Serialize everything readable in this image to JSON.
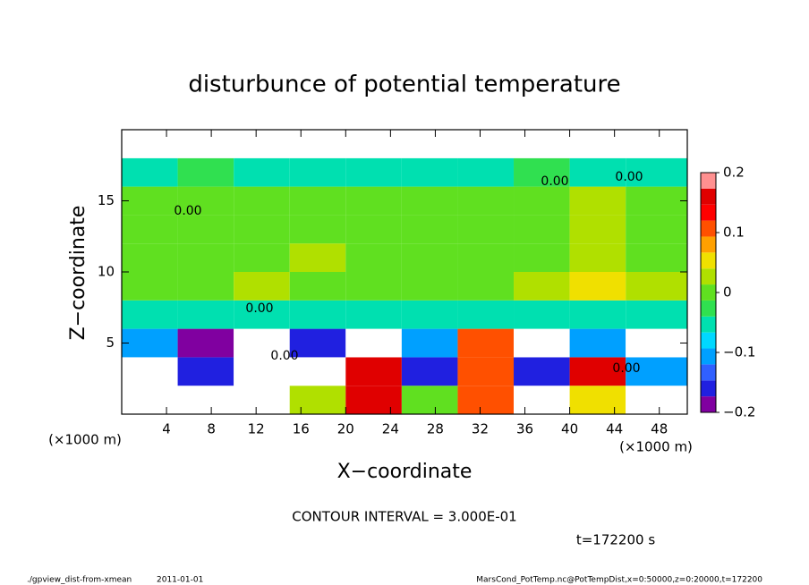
{
  "chart_data": {
    "type": "heatmap",
    "title": "disturbunce of potential temperature",
    "x_label": "X−coordinate",
    "y_label": "Z−coordinate",
    "x_unit": "(×1000 m)",
    "x_unit_right": "(×1000 m)",
    "xlim": [
      0,
      50.5
    ],
    "ylim": [
      0,
      20
    ],
    "xticks": [
      4,
      8,
      12,
      16,
      20,
      24,
      28,
      32,
      36,
      40,
      44,
      48
    ],
    "yticks": [
      5,
      10,
      15
    ],
    "xbins": [
      0,
      5,
      10,
      15,
      20,
      25,
      30,
      35,
      40,
      45,
      50.5
    ],
    "ybins": [
      0,
      2,
      4,
      6,
      8,
      10,
      12,
      14,
      16,
      18,
      20
    ],
    "values": [
      [
        0.25,
        0.25,
        0.25,
        0.02,
        0.15,
        0.0,
        0.1,
        0.25,
        0.05,
        0.25
      ],
      [
        0.25,
        -0.15,
        0.25,
        0.25,
        0.15,
        -0.15,
        0.12,
        -0.15,
        0.15,
        -0.12
      ],
      [
        -0.12,
        -0.18,
        0.25,
        -0.15,
        0.25,
        -0.12,
        0.1,
        0.25,
        -0.1,
        0.25
      ],
      [
        -0.06,
        -0.06,
        -0.05,
        -0.06,
        -0.06,
        -0.06,
        -0.06,
        -0.06,
        -0.06,
        -0.06
      ],
      [
        0.0,
        0.01,
        0.02,
        0.01,
        0.0,
        0.01,
        0.0,
        0.02,
        0.04,
        0.02
      ],
      [
        0.0,
        0.0,
        0.01,
        0.02,
        0.0,
        0.0,
        0.01,
        0.0,
        0.02,
        0.01
      ],
      [
        0.0,
        0.0,
        0.0,
        0.01,
        0.0,
        0.0,
        0.0,
        0.0,
        0.02,
        0.01
      ],
      [
        0.0,
        0.0,
        0.0,
        0.0,
        0.0,
        0.0,
        0.0,
        0.01,
        0.02,
        0.01
      ],
      [
        -0.04,
        -0.03,
        -0.04,
        -0.04,
        -0.04,
        -0.04,
        -0.04,
        -0.03,
        -0.04,
        -0.04
      ],
      [
        0.25,
        0.25,
        0.25,
        0.25,
        0.25,
        0.25,
        0.25,
        0.25,
        0.25,
        0.25
      ]
    ],
    "clim": [
      -0.2,
      0.2
    ],
    "colorbar_ticks": [
      0.2,
      0.1,
      0,
      {
        "value": -0.1,
        "label": "−0.1"
      },
      {
        "value": -0.2,
        "label": "−0.2"
      }
    ],
    "colorscale": [
      "#8000a0",
      "#2020e0",
      "#3060ff",
      "#00a0ff",
      "#00d8ff",
      "#00e0b0",
      "#30e050",
      "#60e020",
      "#b0e000",
      "#f0e000",
      "#ffa000",
      "#ff5000",
      "#ff0000",
      "#e00000",
      "#ff9090"
    ],
    "over_color": "#ffffff",
    "contour_labels": [
      "0.00",
      "0.00",
      "0.00",
      "0.00",
      "0.00",
      "0.00"
    ],
    "contour_interval": "CONTOUR INTERVAL = 3.000E-01",
    "time_label": "t=172200 s",
    "footer_left": "./gpview_dist-from-xmean",
    "footer_date": "2011-01-01",
    "footer_right": "MarsCond_PotTemp.nc@PotTempDist,x=0:50000,z=0:20000,t=172200"
  }
}
